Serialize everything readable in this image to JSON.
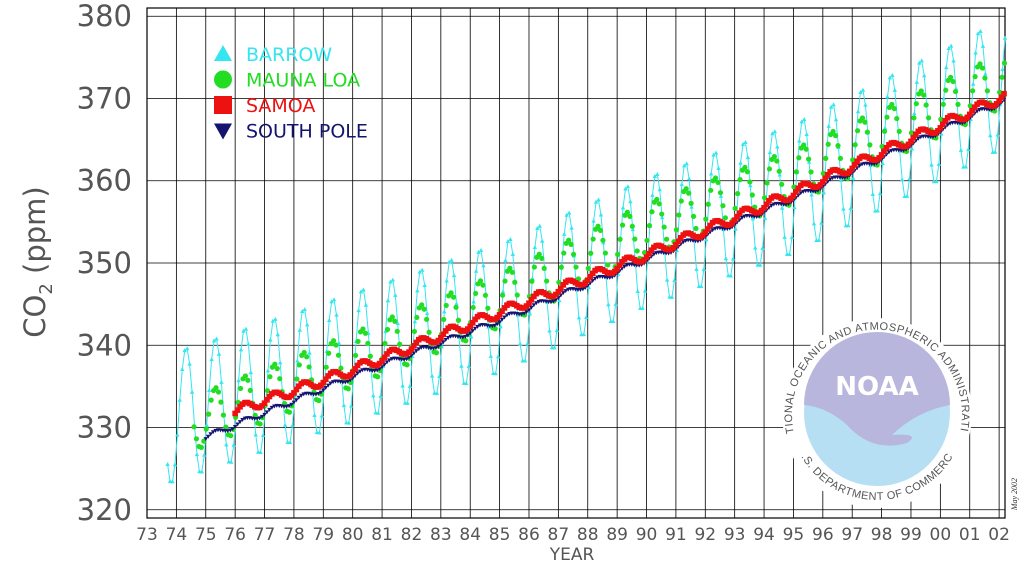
{
  "colors": {
    "barrow": "#33e6ef",
    "mauna_loa": "#22dd22",
    "samoa": "#ee1111",
    "south_pole": "#141470",
    "noaa_purple": "#b8b6dd",
    "noaa_blue": "#b7dff3"
  },
  "chart_data": {
    "type": "line",
    "ylabel": "CO2 (ppm)",
    "xlabel": "YEAR",
    "xlim": [
      1973.0,
      2002.2
    ],
    "ylim": [
      319,
      381
    ],
    "yticks": [
      320,
      330,
      340,
      350,
      360,
      370,
      380
    ],
    "x_tick_labels": [
      "73",
      "74",
      "75",
      "76",
      "77",
      "78",
      "79",
      "80",
      "81",
      "82",
      "83",
      "84",
      "85",
      "86",
      "87",
      "88",
      "89",
      "90",
      "91",
      "92",
      "93",
      "94",
      "95",
      "96",
      "97",
      "98",
      "99",
      "00",
      "01",
      "02"
    ],
    "grid": true,
    "legend_placement": "top-left",
    "note": "May 2002",
    "series": [
      {
        "name": "BARROW",
        "marker": "triangle-up",
        "line": true,
        "start": 1973.7,
        "end": 2002.3,
        "base": [
          [
            1973.7,
            331.0
          ],
          [
            1980,
            338.5
          ],
          [
            1985,
            344.5
          ],
          [
            1990,
            352.5
          ],
          [
            1995,
            359.0
          ],
          [
            2002,
            371.5
          ]
        ],
        "amplitude": 8.0
      },
      {
        "name": "MAUNA LOA",
        "marker": "circle",
        "line": false,
        "start": 1974.6,
        "end": 2002.3,
        "base": [
          [
            1974.6,
            330.5
          ],
          [
            1980,
            338.2
          ],
          [
            1985,
            345.5
          ],
          [
            1990,
            354.0
          ],
          [
            1995,
            360.5
          ],
          [
            2002,
            372.0
          ]
        ],
        "amplitude": 3.3
      },
      {
        "name": "SAMOA",
        "marker": "square",
        "line": false,
        "start": 1976.0,
        "end": 2002.3,
        "base": [
          [
            1976,
            332.0
          ],
          [
            1980,
            337.0
          ],
          [
            1985,
            344.0
          ],
          [
            1990,
            351.0
          ],
          [
            1995,
            358.5
          ],
          [
            2002,
            370.0
          ]
        ],
        "amplitude": 0.6
      },
      {
        "name": "SOUTH POLE",
        "marker": "triangle-down",
        "line": false,
        "start": 1975.0,
        "end": 2002.3,
        "base": [
          [
            1975,
            328.8
          ],
          [
            1980,
            336.2
          ],
          [
            1985,
            343.0
          ],
          [
            1990,
            350.4
          ],
          [
            1995,
            357.8
          ],
          [
            2002,
            369.4
          ]
        ],
        "amplitude": 0.35
      }
    ]
  },
  "logo": {
    "text": "NOAA",
    "ring_text_top": "NATIONAL OCEANIC AND ATMOSPHERIC ADMINISTRATION",
    "ring_text_bottom": "U.S. DEPARTMENT OF COMMERCE"
  }
}
